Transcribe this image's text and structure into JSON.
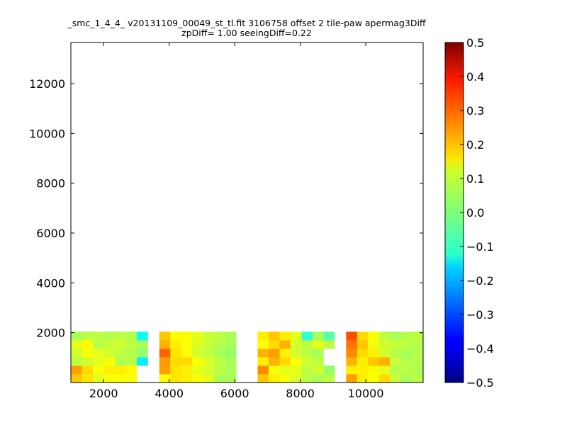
{
  "chart_data": {
    "type": "heatmap",
    "title": "_smc_1_4_4_ v20131109_00049_st_tl.fit 3106758 offset 2 tile-paw apermag3Diff",
    "subtitle": "zpDiff= 1.00 seeingDiff=0.22",
    "xlabel": "",
    "ylabel": "",
    "xlim": [
      1000,
      11750
    ],
    "ylim": [
      0,
      13650
    ],
    "x_ticks": [
      "2000",
      "4000",
      "6000",
      "8000",
      "10000"
    ],
    "y_ticks": [
      "2000",
      "4000",
      "6000",
      "8000",
      "10000",
      "12000"
    ],
    "colorbar": {
      "colormap": "jet",
      "min": -0.5,
      "max": 0.5,
      "ticks": [
        "0.5",
        "0.4",
        "0.3",
        "0.2",
        "0.1",
        "0.0",
        "−0.1",
        "−0.2",
        "−0.3",
        "−0.4",
        "−0.5"
      ]
    },
    "cell_size": [
      335,
      340
    ],
    "x_cell_starts": [
      1000,
      1335,
      1670,
      2005,
      2340,
      2675,
      3010,
      3700,
      4035,
      4370,
      4705,
      5040,
      5375,
      5710,
      6700,
      7035,
      7370,
      7705,
      8040,
      8375,
      8710,
      9400,
      9735,
      10070,
      10405,
      10740,
      11075,
      11410
    ],
    "y_cell_starts": [
      0,
      340,
      680,
      1020,
      1360,
      1700,
      3900,
      4240,
      4580,
      4920,
      5260,
      5600,
      7800,
      8140,
      8480,
      8820,
      9160,
      9500,
      11700,
      12040,
      12380,
      12720,
      13060,
      13400
    ],
    "grid": [
      [
        0.18,
        0.15,
        0.1,
        0.12,
        0.12,
        0.12,
        null,
        0.12,
        0.15,
        0.14,
        0.12,
        0.1,
        0.04,
        0.04,
        0.18,
        0.14,
        0.12,
        0.09,
        0.06,
        0.04,
        0.06,
        0.22,
        0.14,
        0.12,
        0.16,
        0.07,
        0.04,
        0.06
      ],
      [
        0.22,
        0.16,
        0.12,
        0.14,
        0.14,
        0.13,
        null,
        0.22,
        0.15,
        0.14,
        0.1,
        0.08,
        0.06,
        0.04,
        0.24,
        0.12,
        0.1,
        0.1,
        0.06,
        0.08,
        0.02,
        0.14,
        0.14,
        0.13,
        0.1,
        0.05,
        0.06,
        0.04
      ],
      [
        0.06,
        0.08,
        0.1,
        0.12,
        0.05,
        0.06,
        -0.14,
        0.22,
        0.16,
        0.16,
        0.12,
        0.09,
        0.06,
        0.04,
        0.14,
        0.2,
        0.16,
        0.12,
        0.08,
        0.06,
        null,
        0.2,
        0.14,
        0.18,
        0.2,
        0.07,
        0.05,
        0.05
      ],
      [
        0.08,
        0.12,
        0.1,
        0.08,
        0.06,
        0.05,
        0.02,
        0.28,
        0.15,
        0.12,
        0.08,
        0.06,
        0.04,
        0.02,
        0.2,
        0.22,
        0.14,
        0.08,
        0.06,
        0.04,
        null,
        0.24,
        0.16,
        0.14,
        0.08,
        0.05,
        0.04,
        0.05
      ],
      [
        0.1,
        0.13,
        0.05,
        0.07,
        0.08,
        0.06,
        0.04,
        0.2,
        0.14,
        0.12,
        0.09,
        0.07,
        0.05,
        0.04,
        0.12,
        0.16,
        0.2,
        0.08,
        0.06,
        0.1,
        0.06,
        0.26,
        0.18,
        0.11,
        0.08,
        0.07,
        0.06,
        0.05
      ],
      [
        0.04,
        0.06,
        0.06,
        0.05,
        0.06,
        0.05,
        -0.12,
        0.18,
        0.12,
        0.12,
        0.1,
        0.07,
        0.06,
        0.04,
        0.14,
        0.18,
        0.14,
        0.1,
        -0.08,
        0.04,
        -0.04,
        0.3,
        0.16,
        0.12,
        0.06,
        0.04,
        0.05,
        0.06
      ],
      [
        null,
        null,
        null,
        null,
        null,
        null,
        null,
        null,
        null,
        null,
        null,
        null,
        null,
        null,
        null,
        null,
        null,
        null,
        null,
        null,
        null,
        null,
        null,
        null,
        null,
        null,
        null,
        null
      ],
      [
        null,
        null,
        null,
        null,
        null,
        null,
        null,
        null,
        null,
        null,
        null,
        null,
        null,
        null,
        null,
        null,
        null,
        null,
        null,
        null,
        null,
        null,
        null,
        null,
        null,
        null,
        null,
        null
      ],
      [
        null,
        null,
        null,
        null,
        null,
        null,
        null,
        null,
        null,
        null,
        null,
        null,
        null,
        null,
        null,
        null,
        null,
        null,
        null,
        null,
        null,
        null,
        null,
        null,
        null,
        null,
        null,
        null
      ],
      [
        null,
        null,
        null,
        null,
        null,
        null,
        null,
        null,
        null,
        null,
        null,
        null,
        null,
        null,
        null,
        null,
        null,
        null,
        null,
        null,
        null,
        null,
        null,
        null,
        null,
        null,
        null,
        null
      ],
      [
        null,
        null,
        null,
        null,
        null,
        null,
        null,
        null,
        null,
        null,
        null,
        null,
        null,
        null,
        null,
        null,
        null,
        null,
        null,
        null,
        null,
        null,
        null,
        null,
        null,
        null,
        null,
        null
      ],
      [
        null,
        null,
        null,
        null,
        null,
        null,
        null,
        null,
        null,
        null,
        null,
        null,
        null,
        null,
        null,
        null,
        null,
        null,
        null,
        null,
        null,
        null,
        null,
        null,
        null,
        null,
        null,
        null
      ],
      [
        null,
        null,
        null,
        null,
        null,
        null,
        null,
        null,
        null,
        null,
        null,
        null,
        null,
        null,
        null,
        null,
        null,
        null,
        null,
        null,
        null,
        null,
        null,
        null,
        null,
        null,
        null,
        null
      ],
      [
        null,
        null,
        null,
        null,
        null,
        null,
        null,
        null,
        null,
        null,
        null,
        null,
        null,
        null,
        null,
        null,
        null,
        null,
        null,
        null,
        null,
        null,
        null,
        null,
        null,
        null,
        null,
        null
      ],
      [
        null,
        null,
        null,
        null,
        null,
        null,
        null,
        null,
        null,
        null,
        null,
        null,
        null,
        null,
        null,
        null,
        null,
        null,
        null,
        null,
        null,
        null,
        null,
        null,
        null,
        null,
        null,
        null
      ],
      [
        null,
        null,
        null,
        null,
        null,
        null,
        null,
        null,
        null,
        null,
        null,
        null,
        null,
        null,
        null,
        null,
        null,
        null,
        null,
        null,
        null,
        null,
        null,
        null,
        null,
        null,
        null,
        null
      ],
      [
        null,
        null,
        null,
        null,
        null,
        null,
        null,
        null,
        null,
        null,
        null,
        null,
        null,
        null,
        null,
        null,
        null,
        null,
        null,
        null,
        null,
        null,
        null,
        null,
        null,
        null,
        null,
        null
      ],
      [
        null,
        null,
        null,
        null,
        null,
        null,
        null,
        null,
        null,
        null,
        null,
        null,
        null,
        null,
        null,
        null,
        null,
        null,
        null,
        null,
        null,
        null,
        null,
        null,
        null,
        null,
        null,
        null
      ],
      [
        null,
        null,
        null,
        null,
        null,
        null,
        null,
        null,
        null,
        null,
        null,
        null,
        null,
        null,
        null,
        null,
        null,
        null,
        null,
        null,
        null,
        null,
        null,
        null,
        null,
        null,
        null,
        null
      ],
      [
        null,
        null,
        null,
        null,
        null,
        null,
        null,
        null,
        null,
        null,
        null,
        null,
        null,
        null,
        null,
        null,
        null,
        null,
        null,
        null,
        null,
        null,
        null,
        null,
        null,
        null,
        null,
        null
      ],
      [
        null,
        null,
        null,
        null,
        null,
        null,
        null,
        null,
        null,
        null,
        null,
        null,
        null,
        null,
        null,
        null,
        null,
        null,
        null,
        null,
        null,
        null,
        null,
        null,
        null,
        null,
        null,
        null
      ],
      [
        null,
        null,
        null,
        null,
        null,
        null,
        null,
        null,
        null,
        null,
        null,
        null,
        null,
        null,
        null,
        null,
        null,
        null,
        null,
        null,
        null,
        null,
        null,
        null,
        null,
        null,
        null,
        null
      ],
      [
        null,
        null,
        null,
        null,
        null,
        null,
        null,
        null,
        null,
        null,
        null,
        null,
        null,
        null,
        null,
        null,
        null,
        null,
        null,
        null,
        null,
        null,
        null,
        null,
        null,
        null,
        null,
        null
      ],
      [
        null,
        null,
        null,
        null,
        null,
        null,
        null,
        null,
        null,
        null,
        null,
        null,
        null,
        null,
        null,
        null,
        null,
        null,
        null,
        null,
        null,
        null,
        null,
        null,
        null,
        null,
        null,
        null
      ]
    ]
  }
}
